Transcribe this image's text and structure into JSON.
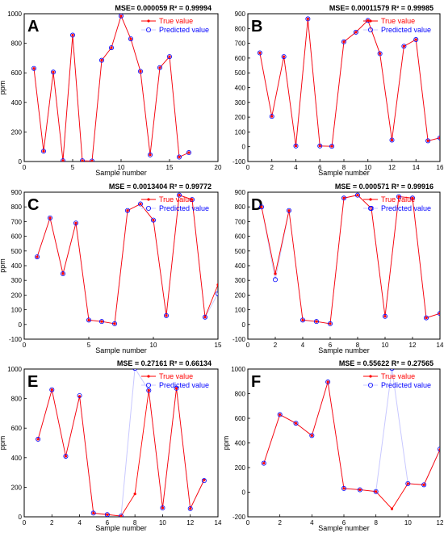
{
  "colors": {
    "true_value": "#ff0000",
    "predicted_value": "#0000ff",
    "predicted_line": "#c8c8ff",
    "axis": "#000000"
  },
  "chart_data": [
    {
      "type": "line",
      "panel": "A",
      "title": "MSE= 0.000059 R² = 0.99994",
      "xlabel": "Sample number",
      "ylabel": "ppm",
      "xlim": [
        0,
        20
      ],
      "ylim": [
        0,
        1000
      ],
      "xticks": [
        0,
        5,
        10,
        15,
        20
      ],
      "yticks": [
        0,
        200,
        400,
        600,
        800,
        1000
      ],
      "x": [
        1,
        2,
        3,
        4,
        5,
        6,
        7,
        8,
        9,
        10,
        11,
        12,
        13,
        14,
        15,
        16,
        17
      ],
      "series": [
        {
          "name": "True value",
          "values": [
            630,
            70,
            605,
            5,
            855,
            5,
            3,
            685,
            770,
            985,
            830,
            610,
            45,
            635,
            710,
            30,
            60
          ]
        },
        {
          "name": "Predicted value",
          "values": [
            630,
            70,
            605,
            5,
            855,
            5,
            3,
            685,
            770,
            985,
            830,
            610,
            45,
            635,
            710,
            30,
            60
          ]
        }
      ],
      "legend": "top-right"
    },
    {
      "type": "line",
      "panel": "B",
      "title": "MSE= 0.00011579 R² = 0.99985",
      "xlabel": "Sample number",
      "ylabel": "",
      "xlim": [
        0,
        16
      ],
      "ylim": [
        -100,
        900
      ],
      "xticks": [
        0,
        2,
        4,
        6,
        8,
        10,
        12,
        14,
        16
      ],
      "yticks": [
        -100,
        0,
        100,
        200,
        300,
        400,
        500,
        600,
        700,
        800,
        900
      ],
      "x": [
        1,
        2,
        3,
        4,
        5,
        6,
        7,
        8,
        9,
        10,
        11,
        12,
        13,
        14,
        15,
        16
      ],
      "series": [
        {
          "name": "True value",
          "values": [
            635,
            205,
            610,
            5,
            865,
            5,
            3,
            710,
            775,
            855,
            630,
            45,
            680,
            725,
            40,
            60
          ]
        },
        {
          "name": "Predicted value",
          "values": [
            635,
            205,
            610,
            5,
            865,
            5,
            3,
            710,
            775,
            855,
            630,
            45,
            680,
            725,
            40,
            60
          ]
        }
      ],
      "legend": "top-right"
    },
    {
      "type": "line",
      "panel": "C",
      "title": "MSE = 0.0013404 R² = 0.99772",
      "xlabel": "Sample number",
      "ylabel": "ppm",
      "xlim": [
        0,
        15
      ],
      "ylim": [
        -100,
        900
      ],
      "xticks": [
        0,
        5,
        10,
        15
      ],
      "yticks": [
        -100,
        0,
        100,
        200,
        300,
        400,
        500,
        600,
        700,
        800,
        900
      ],
      "x": [
        1,
        2,
        3,
        4,
        5,
        6,
        7,
        8,
        9,
        10,
        11,
        12,
        13,
        14,
        15
      ],
      "series": [
        {
          "name": "True value",
          "values": [
            460,
            725,
            345,
            690,
            30,
            20,
            5,
            775,
            820,
            710,
            60,
            880,
            850,
            50,
            270
          ]
        },
        {
          "name": "Predicted value",
          "values": [
            460,
            725,
            345,
            690,
            30,
            20,
            5,
            775,
            820,
            710,
            60,
            880,
            850,
            50,
            210
          ]
        }
      ],
      "legend": "top-right"
    },
    {
      "type": "line",
      "panel": "D",
      "title": "MSE = 0.000571 R² = 0.99916",
      "xlabel": "Sample number",
      "ylabel": "",
      "xlim": [
        0,
        14
      ],
      "ylim": [
        -100,
        900
      ],
      "xticks": [
        0,
        2,
        4,
        6,
        8,
        10,
        12,
        14
      ],
      "yticks": [
        -100,
        0,
        100,
        200,
        300,
        400,
        500,
        600,
        700,
        800,
        900
      ],
      "x": [
        1,
        2,
        3,
        4,
        5,
        6,
        7,
        8,
        9,
        10,
        11,
        12,
        13,
        14
      ],
      "series": [
        {
          "name": "True value",
          "values": [
            800,
            345,
            775,
            30,
            20,
            5,
            860,
            880,
            790,
            55,
            870,
            860,
            45,
            75
          ]
        },
        {
          "name": "Predicted value",
          "values": [
            800,
            305,
            775,
            30,
            20,
            5,
            860,
            880,
            790,
            55,
            870,
            860,
            45,
            75
          ]
        }
      ],
      "legend": "top-right"
    },
    {
      "type": "line",
      "panel": "E",
      "title": "MSE = 0.27161 R² = 0.66134",
      "xlabel": "Sample number",
      "ylabel": "ppm",
      "xlim": [
        0,
        14
      ],
      "ylim": [
        0,
        1000
      ],
      "xticks": [
        0,
        2,
        4,
        6,
        8,
        10,
        12,
        14
      ],
      "yticks": [
        0,
        200,
        400,
        600,
        800,
        1000
      ],
      "x": [
        1,
        2,
        3,
        4,
        5,
        6,
        7,
        8,
        9,
        10,
        11,
        12,
        13
      ],
      "series": [
        {
          "name": "True value",
          "values": [
            525,
            860,
            410,
            815,
            25,
            15,
            5,
            155,
            855,
            60,
            870,
            55,
            250
          ]
        },
        {
          "name": "Predicted value",
          "values": [
            525,
            860,
            410,
            820,
            25,
            15,
            5,
            1005,
            855,
            60,
            870,
            55,
            245
          ]
        }
      ],
      "legend": "top-right"
    },
    {
      "type": "line",
      "panel": "F",
      "title": "MSE = 0.55622 R² = 0.27565",
      "xlabel": "Sample number",
      "ylabel": "ppm",
      "xlim": [
        0,
        12
      ],
      "ylim": [
        -200,
        1000
      ],
      "xticks": [
        0,
        2,
        4,
        6,
        8,
        10,
        12
      ],
      "yticks": [
        -200,
        0,
        200,
        400,
        600,
        800,
        1000
      ],
      "x": [
        1,
        2,
        3,
        4,
        5,
        6,
        7,
        8,
        9,
        10,
        11,
        12
      ],
      "series": [
        {
          "name": "True value",
          "values": [
            235,
            630,
            560,
            460,
            895,
            30,
            20,
            5,
            -135,
            70,
            60,
            345
          ]
        },
        {
          "name": "Predicted value",
          "values": [
            235,
            630,
            560,
            460,
            895,
            30,
            20,
            5,
            1005,
            70,
            60,
            350
          ]
        }
      ],
      "legend": "top-right"
    }
  ]
}
